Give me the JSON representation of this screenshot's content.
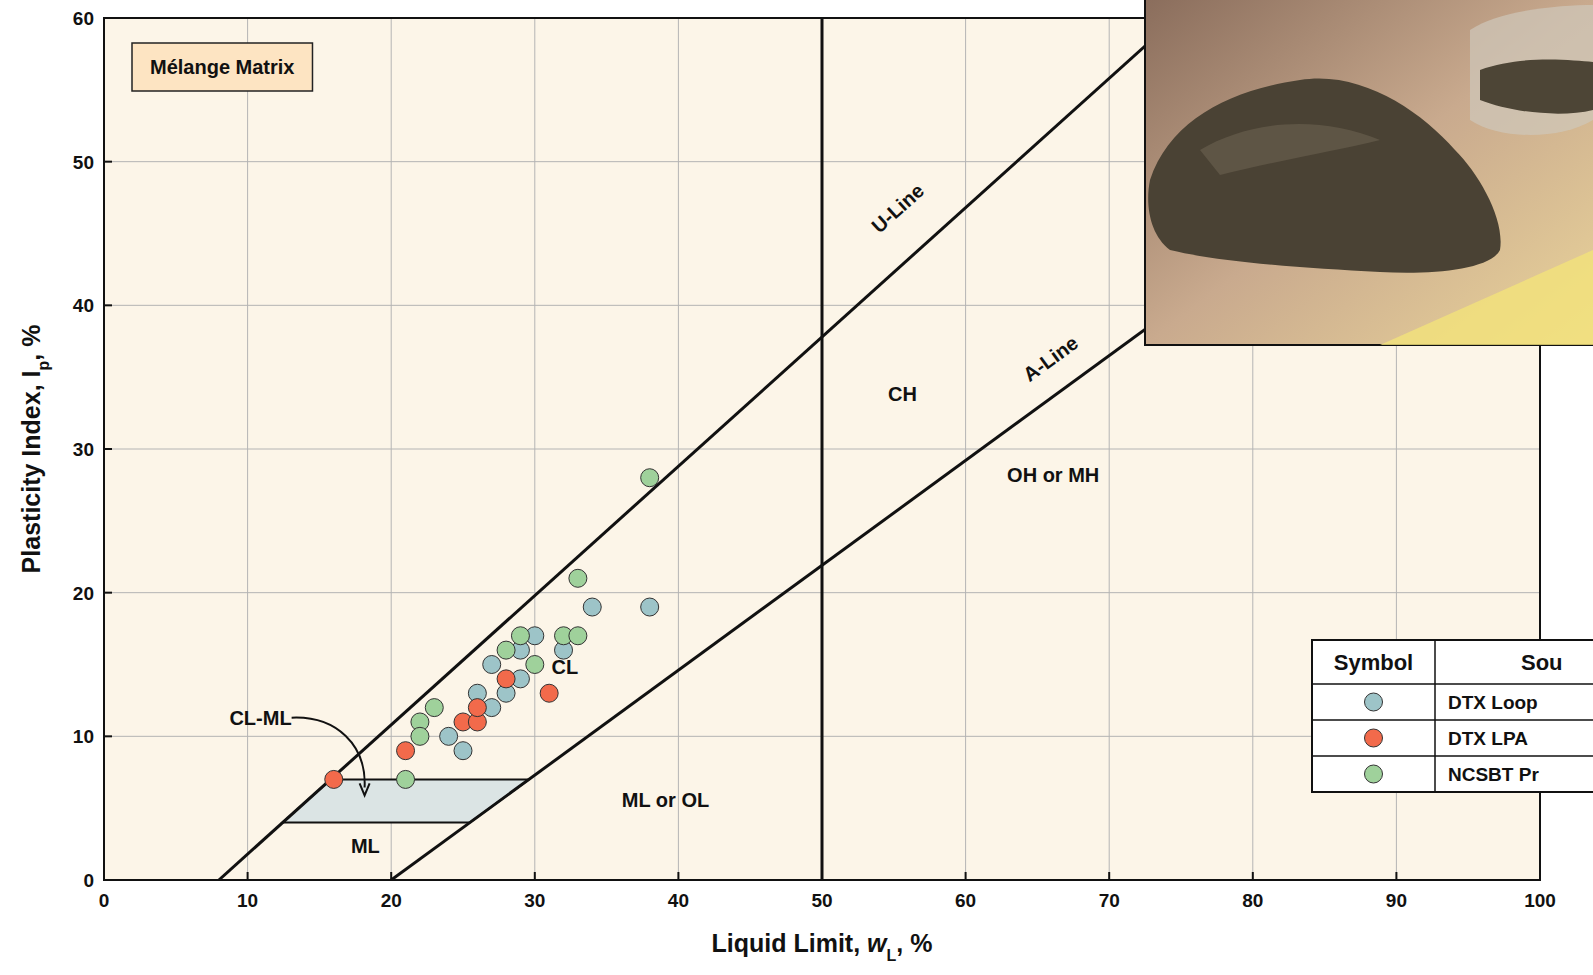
{
  "chart_data": {
    "type": "scatter",
    "title": "Mélange Matrix",
    "x_label": [
      {
        "text": "Liquid Limit, "
      },
      {
        "text": "w",
        "style": "italic"
      },
      {
        "text": "L",
        "style": "sub"
      },
      {
        "text": ", %"
      }
    ],
    "y_label": [
      {
        "text": "Plasticity Index, I"
      },
      {
        "text": "p",
        "style": "sub"
      },
      {
        "text": ", %"
      }
    ],
    "xlim": [
      0,
      100
    ],
    "ylim": [
      0,
      60
    ],
    "xticks": [
      0,
      10,
      20,
      30,
      40,
      50,
      60,
      70,
      80,
      90,
      100
    ],
    "yticks": [
      0,
      10,
      20,
      30,
      40,
      50,
      60
    ],
    "grid": true,
    "legend": "right",
    "legend_columns": [
      "Symbol",
      "Sou"
    ],
    "marker": "circle",
    "series": [
      {
        "name": "DTX Loop",
        "color": "#9dc4c8",
        "x": [
          34,
          38,
          30,
          32,
          29,
          27,
          29,
          26,
          28,
          27,
          24,
          25
        ],
        "values": [
          19,
          19,
          17,
          16,
          16,
          15,
          14,
          13,
          13,
          12,
          10,
          9
        ]
      },
      {
        "name": "DTX LPA",
        "color": "#f26a4b",
        "x": [
          16,
          21,
          25,
          26,
          26,
          28,
          31
        ],
        "values": [
          7,
          9,
          11,
          11,
          12,
          14,
          13
        ]
      },
      {
        "name": "NCSBT Pr",
        "color": "#9fd19b",
        "x": [
          38,
          33,
          29,
          32,
          33,
          28,
          30,
          23,
          22,
          22,
          21
        ],
        "values": [
          28,
          21,
          17,
          17,
          17,
          16,
          15,
          12,
          11,
          10,
          7
        ]
      }
    ],
    "reference_lines": [
      {
        "label": "U-Line",
        "points": [
          [
            8,
            0
          ],
          [
            74.67,
            60
          ]
        ],
        "label_xy": [
          55.6,
          46.4
        ]
      },
      {
        "label": "A-Line",
        "points": [
          [
            20,
            0
          ],
          [
            100,
            58.4
          ]
        ],
        "label_xy": [
          66.2,
          35.9
        ]
      },
      {
        "points": [
          [
            50,
            0
          ],
          [
            50,
            60
          ]
        ]
      }
    ],
    "regions": [
      {
        "points": [
          [
            12.44,
            4
          ],
          [
            15.78,
            7
          ],
          [
            29.59,
            7
          ],
          [
            25.48,
            4
          ]
        ],
        "color": "#dbe4e4"
      }
    ],
    "annotations": [
      {
        "text": "CH",
        "x": 55.6,
        "y": 33.8
      },
      {
        "text": "OH or MH",
        "x": 66.1,
        "y": 28.2
      },
      {
        "text": "CL",
        "x": 32.1,
        "y": 14.8
      },
      {
        "text": "ML or OL",
        "x": 39.1,
        "y": 5.6
      },
      {
        "text": "ML",
        "x": 18.2,
        "y": 2.4
      },
      {
        "text": "CL-ML",
        "x": 10.9,
        "y": 11.3,
        "arrow": true
      }
    ]
  }
}
